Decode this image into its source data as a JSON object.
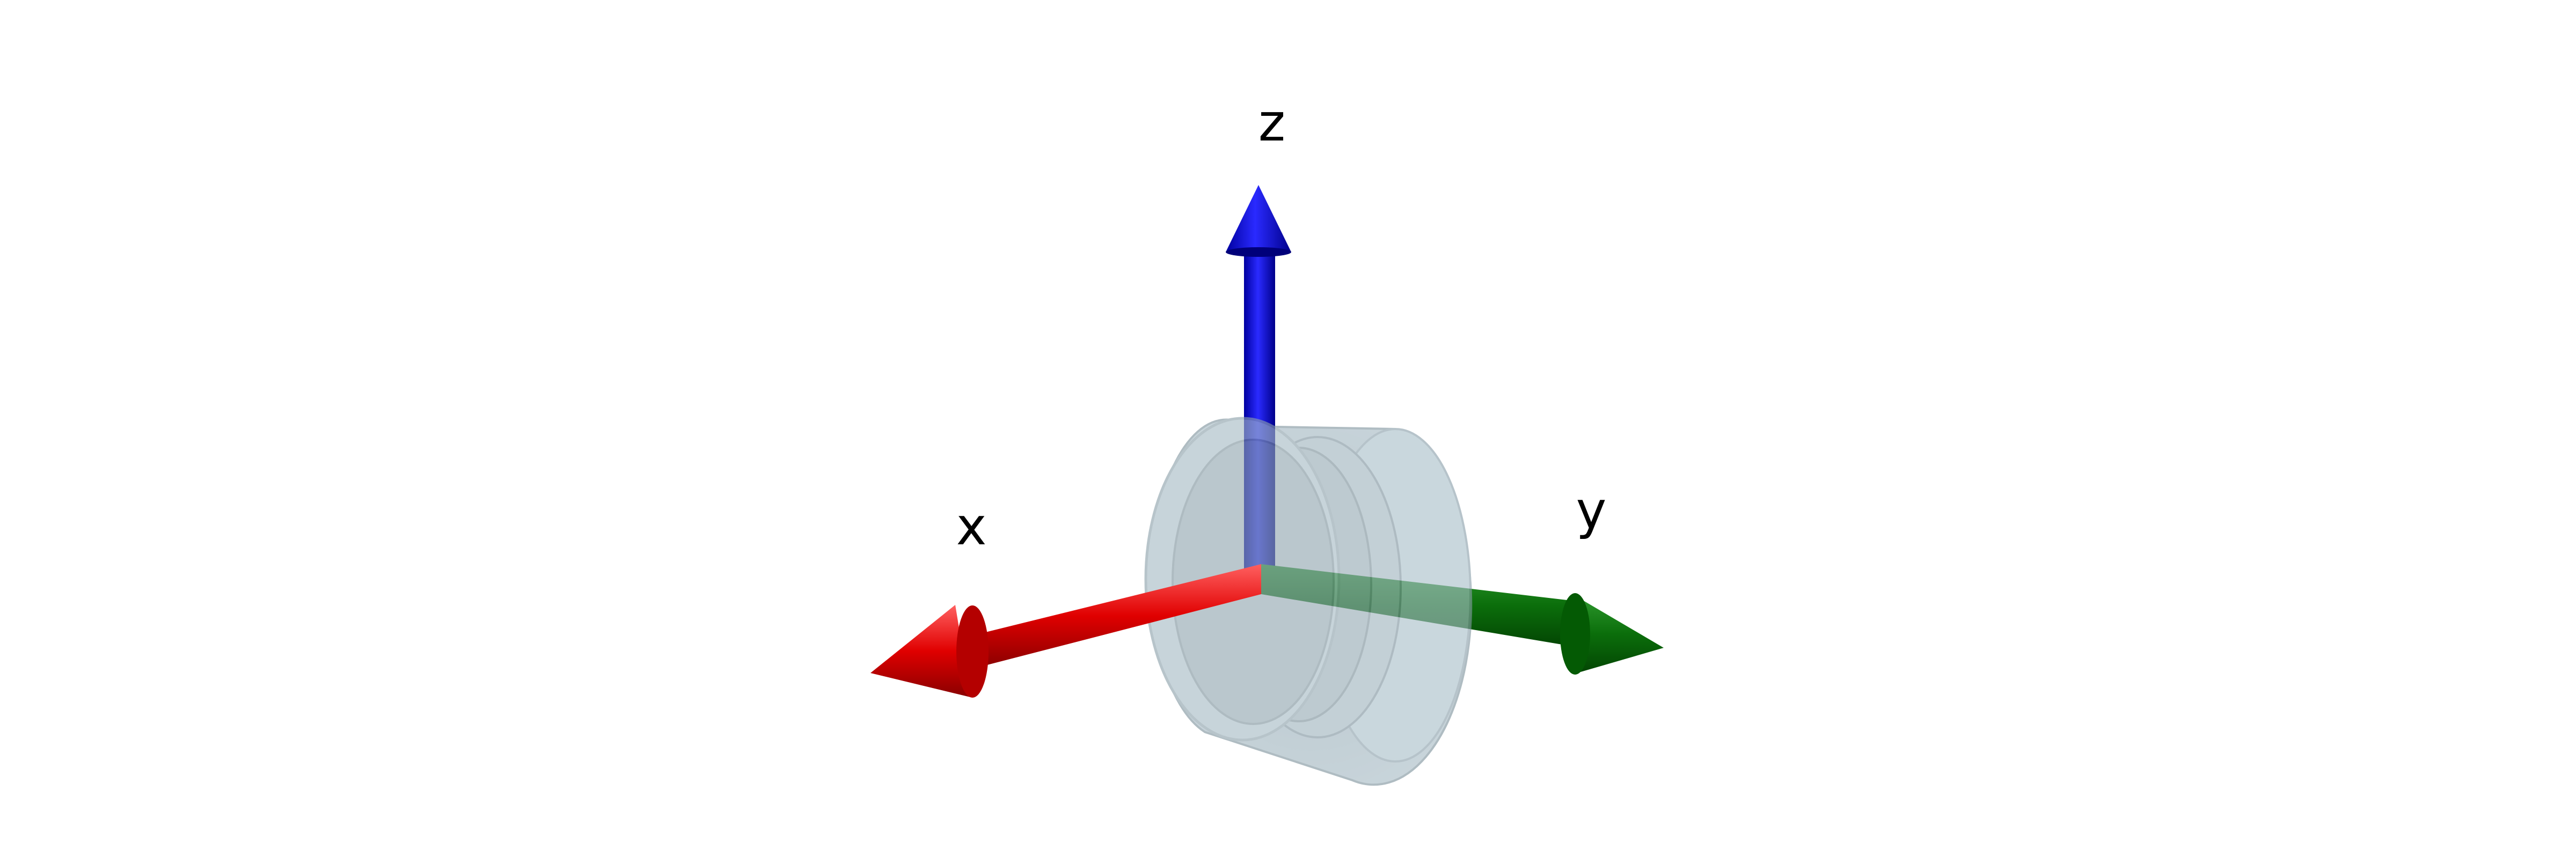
{
  "figure": {
    "axes": {
      "x": {
        "label": "x",
        "color": "#ff0000"
      },
      "y": {
        "label": "y",
        "color": "#007a00"
      },
      "z": {
        "label": "z",
        "color": "#0000ee"
      }
    },
    "body_color": "#a7bcc6"
  }
}
